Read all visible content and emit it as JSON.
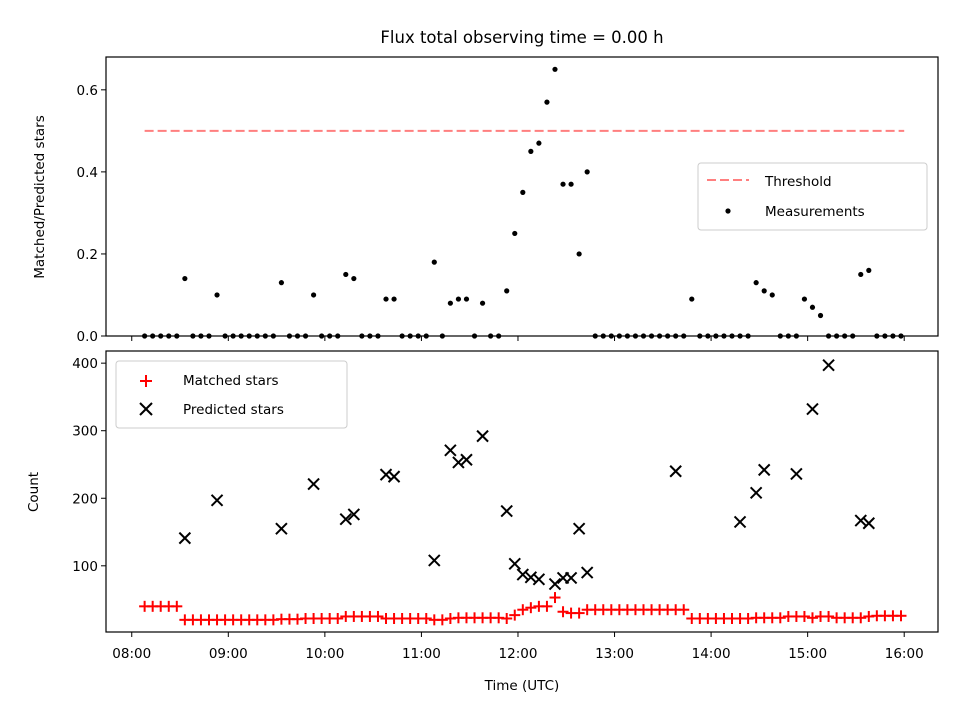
{
  "chart_data": [
    {
      "type": "scatter",
      "title": "Flux total observing time = 0.00 h",
      "xlabel": "",
      "ylabel": "Matched/Predicted stars",
      "xlim": [
        "07:44",
        "16:21"
      ],
      "ylim": [
        0,
        0.68
      ],
      "yticks": [
        0.0,
        0.2,
        0.4,
        0.6
      ],
      "ytick_labels": [
        "0.0",
        "0.2",
        "0.4",
        "0.6"
      ],
      "threshold": {
        "name": "Threshold",
        "y": 0.5,
        "x_start": "08:08",
        "x_end": "16:00",
        "color": "#ff7f7f",
        "style": "dashed"
      },
      "legend": {
        "position": "center-right",
        "entries": [
          "Threshold",
          "Measurements"
        ]
      },
      "series": [
        {
          "name": "Measurements",
          "color": "#000000",
          "x": [
            "08:08",
            "08:13",
            "08:18",
            "08:23",
            "08:28",
            "08:33",
            "08:38",
            "08:43",
            "08:48",
            "08:53",
            "08:58",
            "09:03",
            "09:08",
            "09:13",
            "09:18",
            "09:23",
            "09:28",
            "09:33",
            "09:38",
            "09:43",
            "09:48",
            "09:53",
            "09:58",
            "10:03",
            "10:08",
            "10:13",
            "10:18",
            "10:23",
            "10:28",
            "10:33",
            "10:38",
            "10:43",
            "10:48",
            "10:53",
            "10:58",
            "11:03",
            "11:08",
            "11:13",
            "11:18",
            "11:23",
            "11:28",
            "11:33",
            "11:38",
            "11:43",
            "11:48",
            "11:53",
            "11:58",
            "12:03",
            "12:08",
            "12:13",
            "12:18",
            "12:23",
            "12:28",
            "12:33",
            "12:38",
            "12:43",
            "12:48",
            "12:53",
            "12:58",
            "13:03",
            "13:08",
            "13:13",
            "13:18",
            "13:23",
            "13:28",
            "13:33",
            "13:38",
            "13:43",
            "13:48",
            "13:53",
            "13:58",
            "14:03",
            "14:08",
            "14:13",
            "14:18",
            "14:23",
            "14:28",
            "14:33",
            "14:38",
            "14:43",
            "14:48",
            "14:53",
            "14:58",
            "15:03",
            "15:08",
            "15:13",
            "15:18",
            "15:23",
            "15:28",
            "15:33",
            "15:38",
            "15:43",
            "15:48",
            "15:53",
            "15:58"
          ],
          "y": [
            0,
            0,
            0,
            0,
            0,
            0.14,
            0,
            0,
            0,
            0.1,
            0,
            0,
            0,
            0,
            0,
            0,
            0,
            0.13,
            0,
            0,
            0,
            0.1,
            0,
            0,
            0,
            0.15,
            0.14,
            0,
            0,
            0,
            0.09,
            0.09,
            0,
            0,
            0,
            0,
            0.18,
            0,
            0.08,
            0.09,
            0.09,
            0,
            0.08,
            0,
            0,
            0.11,
            0.25,
            0.35,
            0.45,
            0.47,
            0.57,
            0.65,
            0.37,
            0.37,
            0.2,
            0.4,
            0,
            0,
            0,
            0,
            0,
            0,
            0,
            0,
            0,
            0,
            0,
            0,
            0.09,
            0,
            0,
            0,
            0,
            0,
            0,
            0,
            0.13,
            0.11,
            0.1,
            0,
            0,
            0,
            0.09,
            0.07,
            0.05,
            0,
            0,
            0,
            0,
            0.15,
            0.16,
            0,
            0,
            0,
            0
          ]
        }
      ]
    },
    {
      "type": "scatter",
      "title": "",
      "xlabel": "Time (UTC)",
      "ylabel": "Count",
      "xlim": [
        "07:44",
        "16:21"
      ],
      "ylim": [
        2,
        418
      ],
      "xticks": [
        "08:00",
        "09:00",
        "10:00",
        "11:00",
        "12:00",
        "13:00",
        "14:00",
        "15:00",
        "16:00"
      ],
      "yticks": [
        100,
        200,
        300,
        400
      ],
      "ytick_labels": [
        "100",
        "200",
        "300",
        "400"
      ],
      "legend": {
        "position": "top-left",
        "entries": [
          "Matched stars",
          "Predicted stars"
        ]
      },
      "series": [
        {
          "name": "Matched stars",
          "marker": "+",
          "color": "#ff0000",
          "x": [
            "08:08",
            "08:13",
            "08:18",
            "08:23",
            "08:28",
            "08:33",
            "08:38",
            "08:43",
            "08:48",
            "08:53",
            "08:58",
            "09:03",
            "09:08",
            "09:13",
            "09:18",
            "09:23",
            "09:28",
            "09:33",
            "09:38",
            "09:43",
            "09:48",
            "09:53",
            "09:58",
            "10:03",
            "10:08",
            "10:13",
            "10:18",
            "10:23",
            "10:28",
            "10:33",
            "10:38",
            "10:43",
            "10:48",
            "10:53",
            "10:58",
            "11:03",
            "11:08",
            "11:13",
            "11:18",
            "11:23",
            "11:28",
            "11:33",
            "11:38",
            "11:43",
            "11:48",
            "11:53",
            "11:58",
            "12:03",
            "12:08",
            "12:13",
            "12:18",
            "12:23",
            "12:28",
            "12:33",
            "12:38",
            "12:43",
            "12:48",
            "12:53",
            "12:58",
            "13:03",
            "13:08",
            "13:13",
            "13:18",
            "13:23",
            "13:28",
            "13:33",
            "13:38",
            "13:43",
            "13:48",
            "13:53",
            "13:58",
            "14:03",
            "14:08",
            "14:13",
            "14:18",
            "14:23",
            "14:28",
            "14:33",
            "14:38",
            "14:43",
            "14:48",
            "14:53",
            "14:58",
            "15:03",
            "15:08",
            "15:13",
            "15:18",
            "15:23",
            "15:28",
            "15:33",
            "15:38",
            "15:43",
            "15:48",
            "15:53",
            "15:58"
          ],
          "y": [
            40,
            40,
            40,
            40,
            40,
            20,
            20,
            20,
            20,
            20,
            20,
            20,
            20,
            20,
            20,
            20,
            20,
            21,
            21,
            21,
            22,
            22,
            22,
            22,
            22,
            25,
            25,
            25,
            25,
            25,
            22,
            22,
            22,
            22,
            22,
            22,
            20,
            20,
            22,
            23,
            23,
            23,
            23,
            23,
            23,
            22,
            27,
            35,
            38,
            40,
            40,
            53,
            32,
            30,
            30,
            35,
            35,
            35,
            35,
            35,
            35,
            35,
            35,
            35,
            35,
            35,
            35,
            35,
            22,
            22,
            22,
            22,
            22,
            22,
            22,
            22,
            23,
            23,
            23,
            23,
            25,
            25,
            25,
            23,
            25,
            25,
            23,
            23,
            23,
            23,
            25,
            26,
            26,
            26,
            26
          ]
        },
        {
          "name": "Predicted stars",
          "marker": "x",
          "color": "#000000",
          "x": [
            "08:33",
            "08:53",
            "09:33",
            "09:53",
            "10:13",
            "10:18",
            "10:38",
            "10:43",
            "11:08",
            "11:18",
            "11:23",
            "11:28",
            "11:38",
            "11:53",
            "11:58",
            "12:03",
            "12:08",
            "12:13",
            "12:23",
            "12:28",
            "12:33",
            "12:38",
            "12:43",
            "13:38",
            "14:18",
            "14:28",
            "14:33",
            "14:53",
            "15:03",
            "15:13",
            "15:33",
            "15:38"
          ],
          "y": [
            141,
            197,
            155,
            221,
            169,
            176,
            235,
            232,
            108,
            271,
            253,
            257,
            292,
            181,
            103,
            87,
            83,
            80,
            73,
            82,
            82,
            155,
            90,
            240,
            165,
            208,
            242,
            236,
            332,
            397,
            167,
            163
          ]
        }
      ]
    }
  ]
}
